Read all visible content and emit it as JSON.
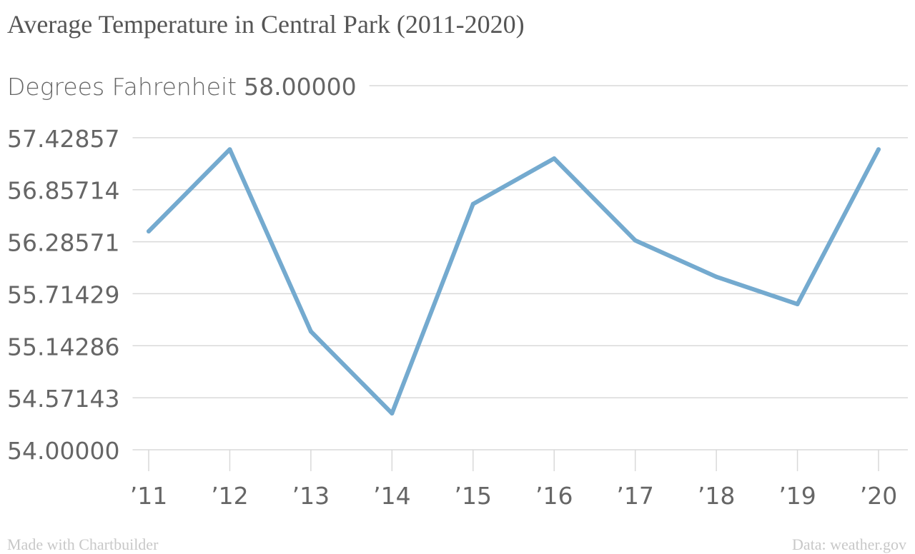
{
  "colors": {
    "line": "#74aacf",
    "grid": "#d9d9d9",
    "title": "#555555",
    "axis_text": "#666666",
    "footer": "#c8c8c8"
  },
  "chart_data": {
    "type": "line",
    "title": "Average Temperature in Central Park (2011-2020)",
    "ylabel": "Degrees Fahrenheit",
    "xlabel": "",
    "x": [
      "’11",
      "’12",
      "’13",
      "’14",
      "’15",
      "’16",
      "’17",
      "’18",
      "’19",
      "’20"
    ],
    "series": [
      {
        "values": [
          56.4,
          57.3,
          55.3,
          54.4,
          56.7,
          57.2,
          56.3,
          55.9,
          55.6,
          57.3
        ]
      }
    ],
    "ylim": [
      54.0,
      58.0
    ],
    "yticks": [
      "54.00000",
      "54.57143",
      "55.14286",
      "55.71429",
      "56.28571",
      "56.85714",
      "57.42857",
      "58.00000"
    ],
    "ytick_values": [
      54.0,
      54.57143,
      55.14286,
      55.71429,
      56.28571,
      56.85714,
      57.42857,
      58.0
    ],
    "grid": true,
    "legend": "none"
  },
  "footer": {
    "left": "Made with Chartbuilder",
    "right": "Data: weather.gov"
  }
}
